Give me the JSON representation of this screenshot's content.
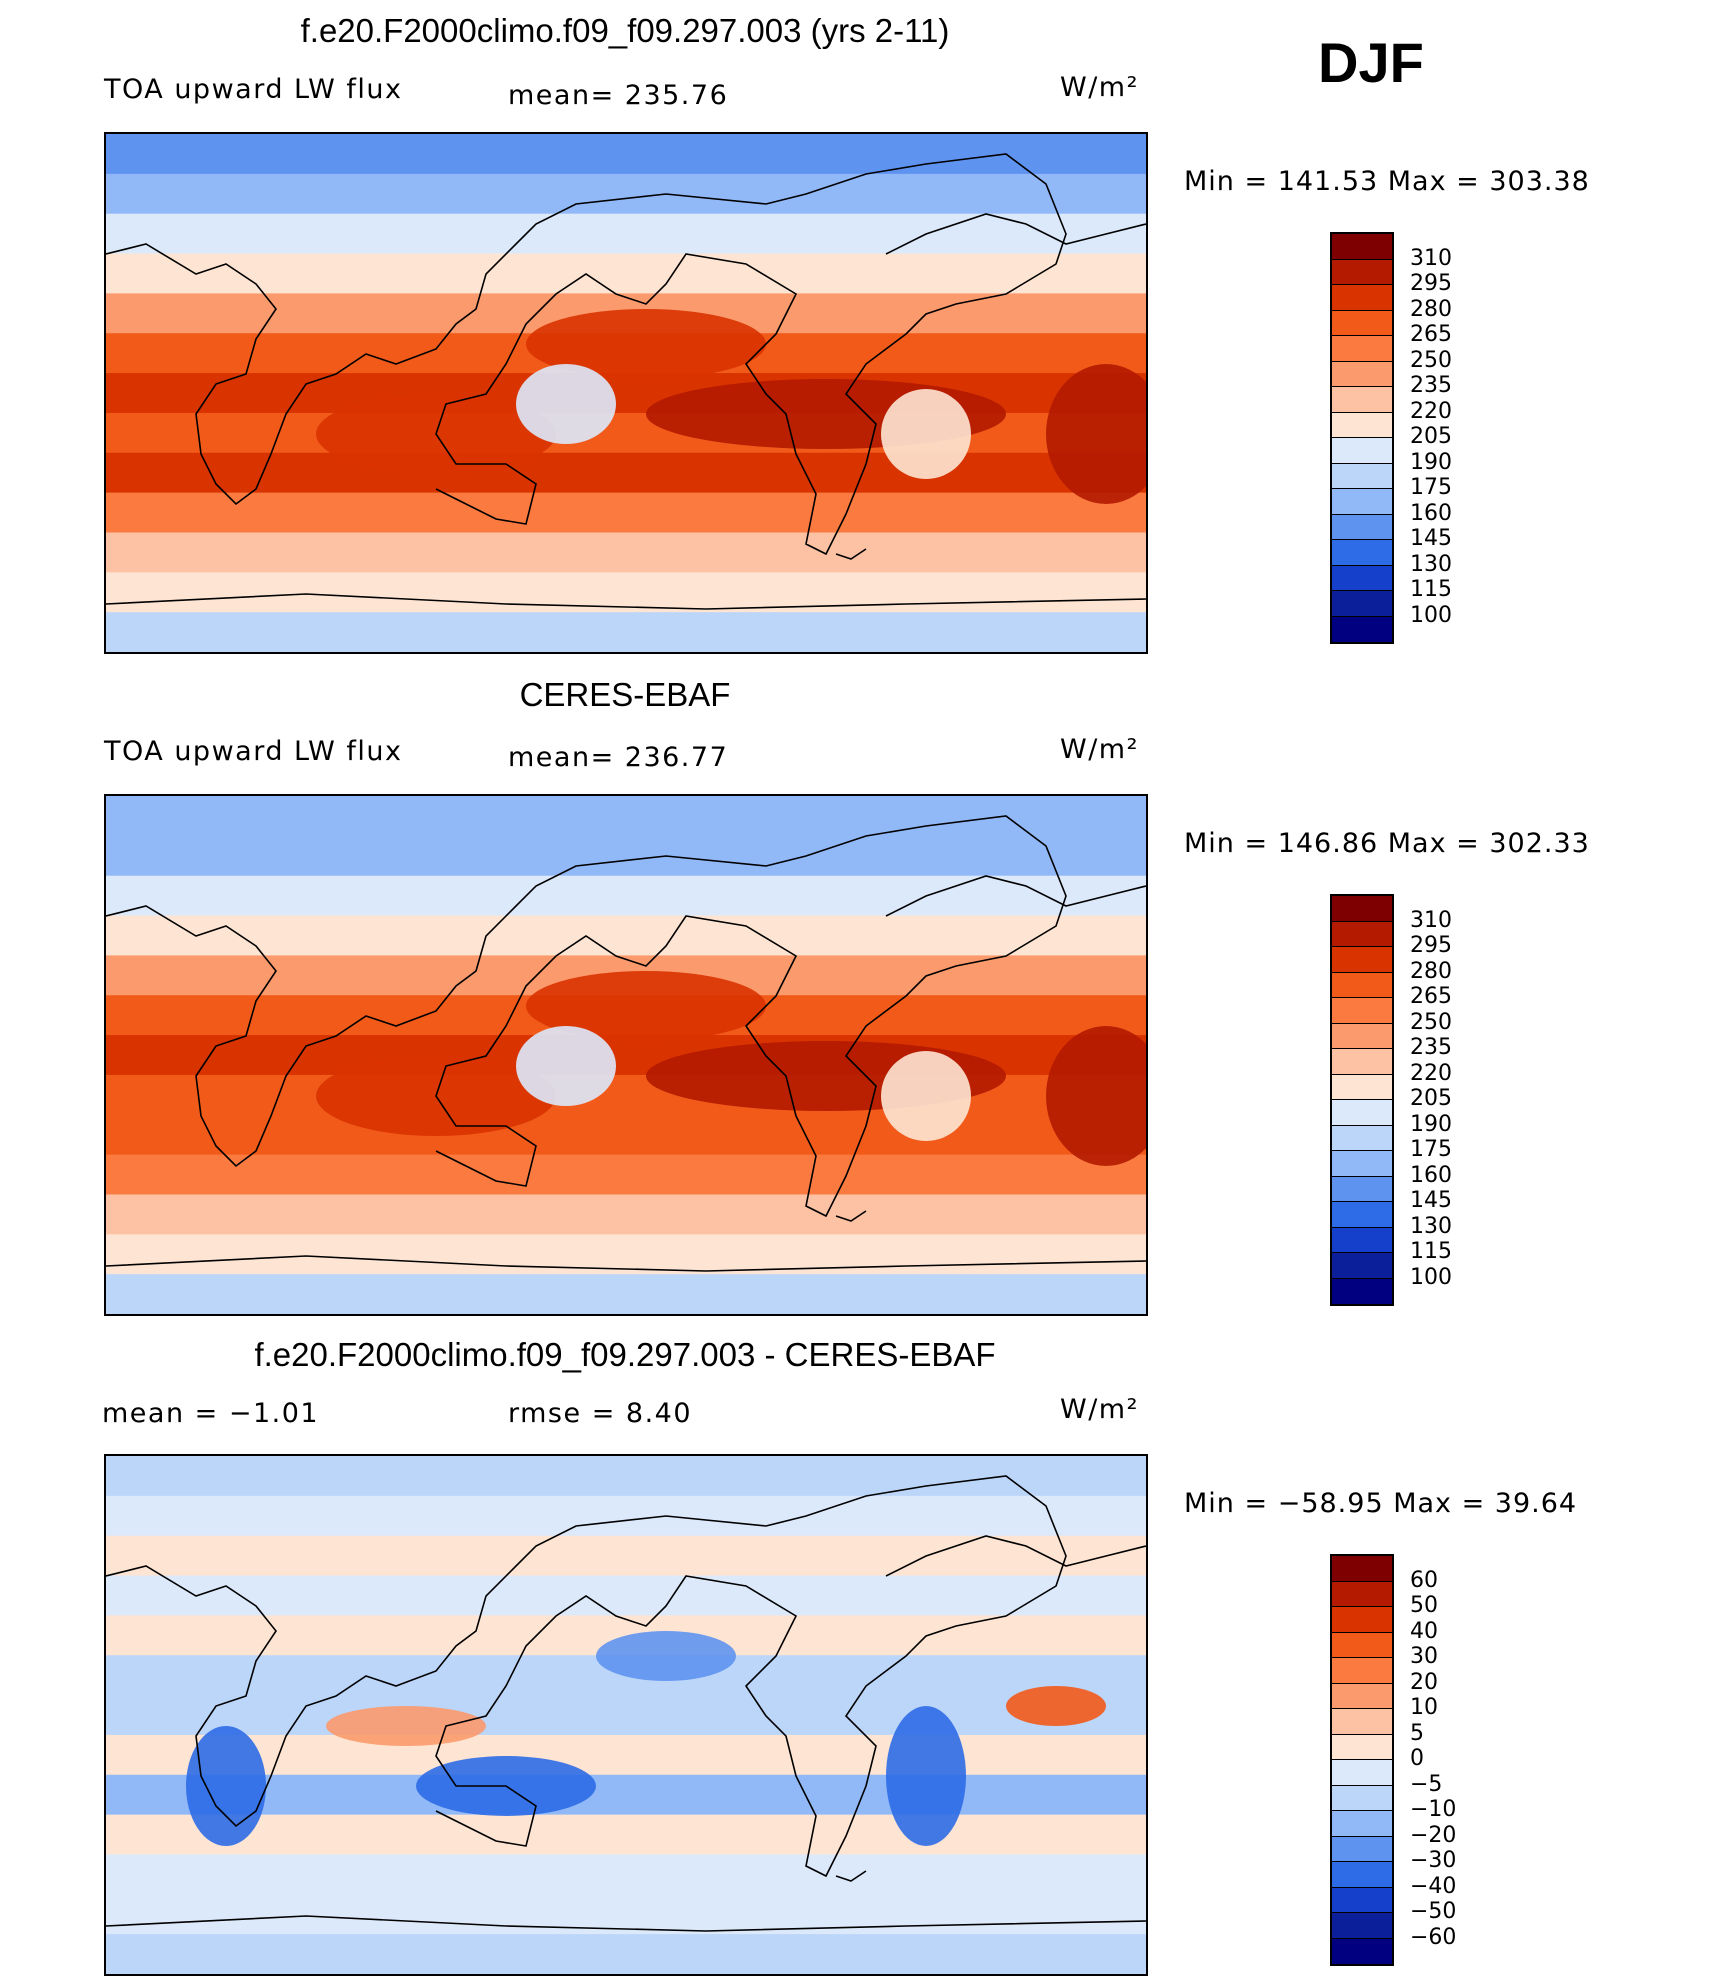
{
  "season": "DJF",
  "units": "W/m²",
  "panels": [
    {
      "title": "f.e20.F2000climo.f09_f09.297.003 (yrs 2-11)",
      "left_label": "TOA upward LW flux",
      "stat_label": "mean= 235.76",
      "units": "W/m²",
      "minmax": "Min = 141.53 Max = 303.38"
    },
    {
      "title": "CERES-EBAF",
      "left_label": "TOA upward LW flux",
      "stat_label": "mean= 236.77",
      "units": "W/m²",
      "minmax": "Min = 146.86 Max = 302.33"
    },
    {
      "title": "f.e20.F2000climo.f09_f09.297.003 - CERES-EBAF",
      "left_label": "mean = −1.01",
      "stat_label": "rmse = 8.40",
      "units": "W/m²",
      "minmax": "Min = −58.95 Max = 39.64"
    }
  ],
  "chart_data": [
    {
      "type": "heatmap",
      "title": "f.e20.F2000climo.f09_f09.297.003 (yrs 2-11)",
      "variable": "TOA upward LW flux",
      "units": "W/m²",
      "mean": 235.76,
      "min": 141.53,
      "max": 303.38,
      "colorbar_levels": [
        "310",
        "295",
        "280",
        "265",
        "250",
        "235",
        "220",
        "205",
        "190",
        "175",
        "160",
        "145",
        "130",
        "115",
        "100"
      ],
      "colorbar_colors": [
        "#7f0000",
        "#b31a00",
        "#d93300",
        "#f25a1a",
        "#fa7a40",
        "#fb9a6c",
        "#fcc2a3",
        "#fee5d3",
        "#dbe9fb",
        "#bcd6fa",
        "#91b8f7",
        "#5f93f0",
        "#2e6be6",
        "#1540cc",
        "#0a1f99",
        "#000080"
      ],
      "lat_band_values": [
        155,
        170,
        190,
        210,
        240,
        270,
        285,
        270,
        280,
        255,
        230,
        205,
        175
      ]
    },
    {
      "type": "heatmap",
      "title": "CERES-EBAF",
      "variable": "TOA upward LW flux",
      "units": "W/m²",
      "mean": 236.77,
      "min": 146.86,
      "max": 302.33,
      "colorbar_levels": [
        "310",
        "295",
        "280",
        "265",
        "250",
        "235",
        "220",
        "205",
        "190",
        "175",
        "160",
        "145",
        "130",
        "115",
        "100"
      ],
      "colorbar_colors": [
        "#7f0000",
        "#b31a00",
        "#d93300",
        "#f25a1a",
        "#fa7a40",
        "#fb9a6c",
        "#fcc2a3",
        "#fee5d3",
        "#dbe9fb",
        "#bcd6fa",
        "#91b8f7",
        "#5f93f0",
        "#2e6be6",
        "#1540cc",
        "#0a1f99",
        "#000080"
      ],
      "lat_band_values": [
        160,
        172,
        192,
        212,
        242,
        272,
        282,
        268,
        278,
        258,
        232,
        206,
        178
      ]
    },
    {
      "type": "heatmap",
      "title": "f.e20.F2000climo.f09_f09.297.003 - CERES-EBAF",
      "variable": "difference",
      "units": "W/m²",
      "mean": -1.01,
      "rmse": 8.4,
      "min": -58.95,
      "max": 39.64,
      "colorbar_levels": [
        "60",
        "50",
        "40",
        "30",
        "20",
        "10",
        "5",
        "0",
        "−5",
        "−10",
        "−20",
        "−30",
        "−40",
        "−50",
        "−60"
      ],
      "colorbar_colors": [
        "#7f0000",
        "#b31a00",
        "#d93300",
        "#f25a1a",
        "#fa7a40",
        "#fb9a6c",
        "#fcc2a3",
        "#fee5d3",
        "#dbe9fb",
        "#bcd6fa",
        "#91b8f7",
        "#5f93f0",
        "#2e6be6",
        "#1540cc",
        "#0a1f99",
        "#000080"
      ],
      "lat_band_values": [
        -8,
        -5,
        3,
        -3,
        2,
        -10,
        -6,
        2,
        -12,
        4,
        -4,
        -2,
        -8
      ]
    }
  ]
}
